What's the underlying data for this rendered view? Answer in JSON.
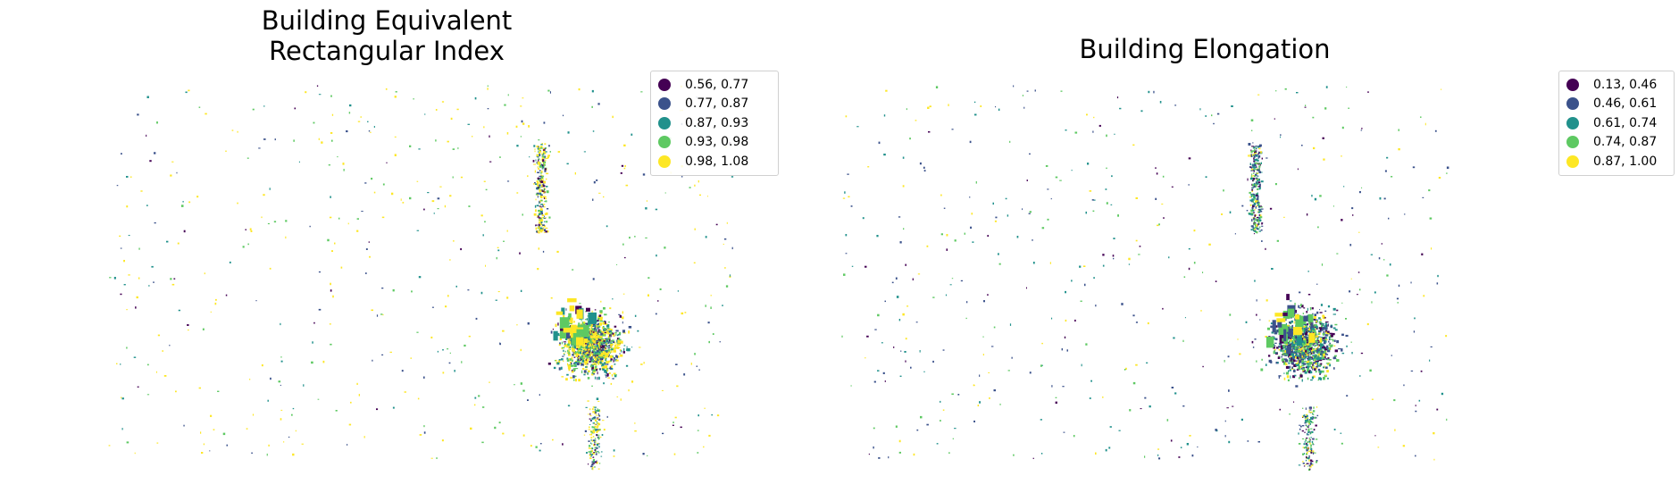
{
  "chart_data": [
    {
      "type": "choropleth-map",
      "title_lines": [
        "Building Equivalent",
        "Rectangular Index"
      ],
      "axes": "off",
      "legend": {
        "placement": "top-right",
        "entries": [
          {
            "label": "0.56, 0.77",
            "color": "#440154"
          },
          {
            "label": "0.77, 0.87",
            "color": "#3b528b"
          },
          {
            "label": "0.87, 0.93",
            "color": "#21918c"
          },
          {
            "label": "0.93, 0.98",
            "color": "#5ec962"
          },
          {
            "label": "0.98, 1.08",
            "color": "#fde725"
          }
        ]
      },
      "class_weights": [
        0.08,
        0.15,
        0.17,
        0.22,
        0.38
      ],
      "seed": 11
    },
    {
      "type": "choropleth-map",
      "title_lines": [
        "Building Elongation"
      ],
      "axes": "off",
      "legend": {
        "placement": "top-right",
        "entries": [
          {
            "label": "0.13, 0.46",
            "color": "#440154"
          },
          {
            "label": "0.46, 0.61",
            "color": "#3b528b"
          },
          {
            "label": "0.61, 0.74",
            "color": "#21918c"
          },
          {
            "label": "0.74, 0.87",
            "color": "#5ec962"
          },
          {
            "label": "0.87, 1.00",
            "color": "#fde725"
          }
        ]
      },
      "class_weights": [
        0.14,
        0.26,
        0.22,
        0.24,
        0.14
      ],
      "seed": 29
    }
  ]
}
